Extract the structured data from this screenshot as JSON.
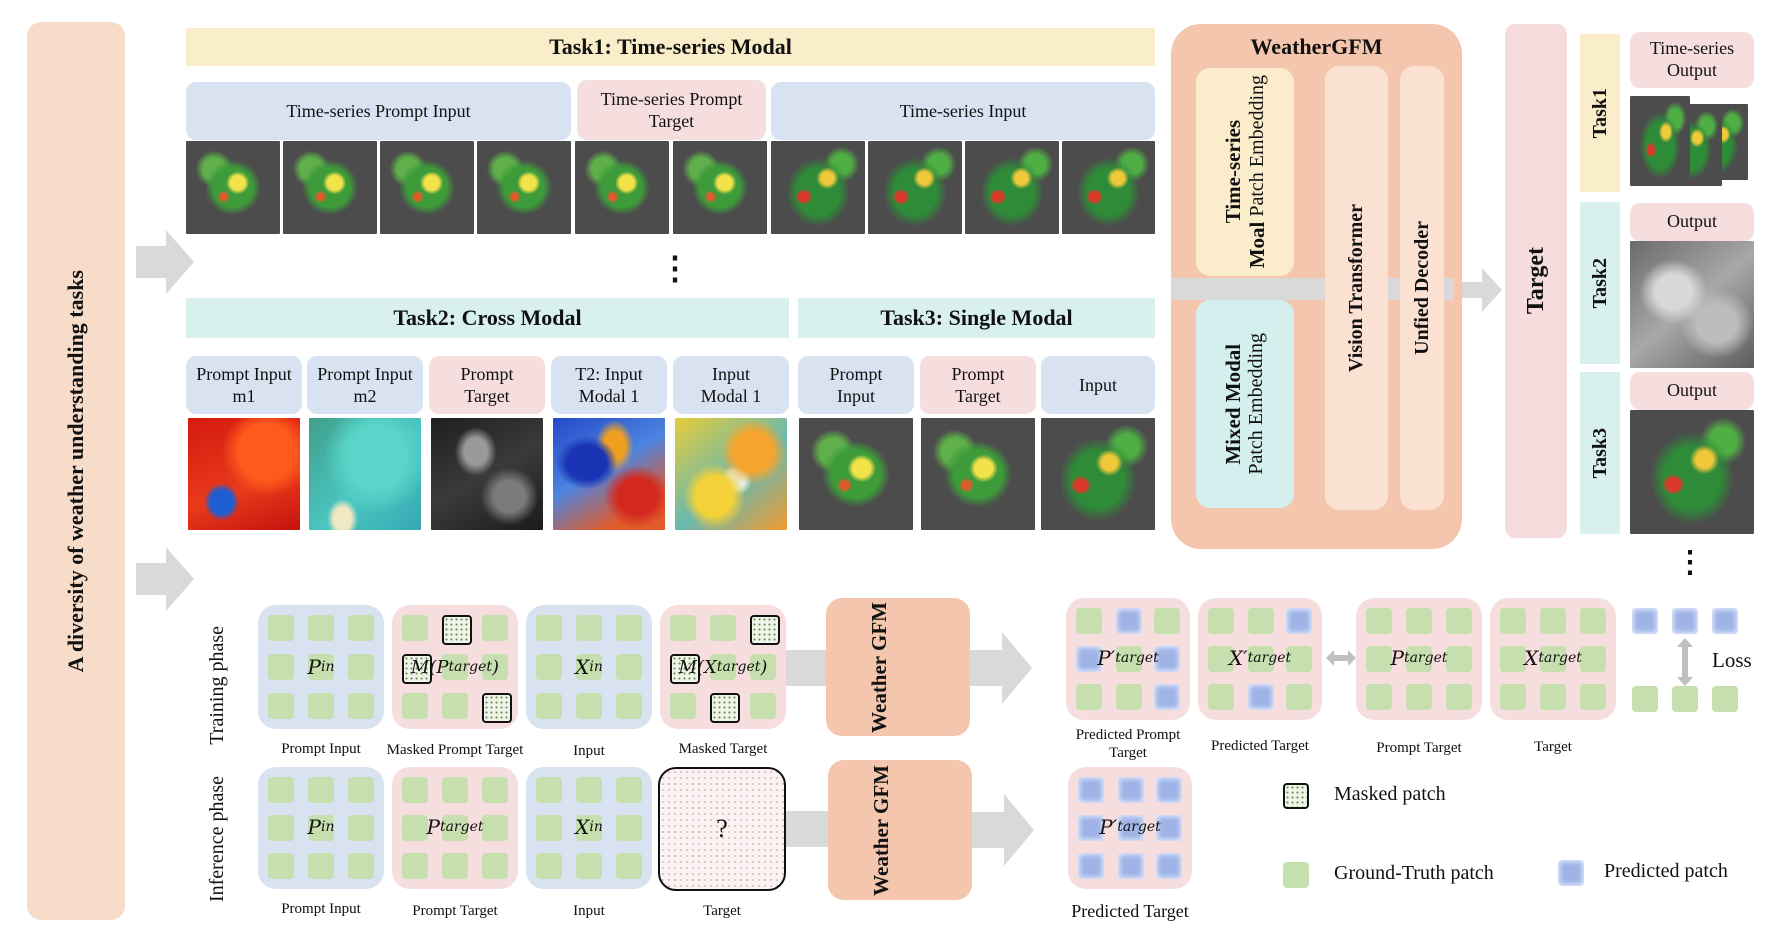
{
  "left_bar_label": "A diversity of weather understanding tasks",
  "task1": {
    "title": "Task1: Time-series Modal",
    "prompt_input": "Time-series Prompt Input",
    "prompt_target": "Time-series Prompt Target",
    "input": "Time-series Input"
  },
  "ellipsis": "⋮",
  "task2": {
    "title": "Task2: Cross Modal",
    "headers": [
      "Prompt Input m1",
      "Prompt Input m2",
      "Prompt Target",
      "T2: Input Modal 1",
      "Input Modal 1"
    ]
  },
  "task3": {
    "title": "Task3: Single Modal",
    "headers": [
      "Prompt Input",
      "Prompt Target",
      "Input"
    ]
  },
  "model": {
    "title": "WeatherGFM",
    "ts_embed_bold": "Time-series",
    "ts_embed_bold2": "Moal",
    "ts_embed_rest": "Patch Embedding",
    "mixed_bold": "Mixed Modal",
    "mixed_rest": "Patch Embedding",
    "vit": "Vision Transformer",
    "decoder": "Unfied Decoder"
  },
  "target_label": "Target",
  "outputs": {
    "task1": "Task1",
    "task2": "Task2",
    "task3": "Task3",
    "ts_output": "Time-series Output",
    "output2": "Output",
    "output3": "Output"
  },
  "training": {
    "phase": "Training phase",
    "boxes": {
      "p_in": "P",
      "p_in_sub": "in",
      "m_ptarget": "M(P",
      "m_ptarget_sub": "target",
      "m_ptarget_close": ")",
      "x_in": "X",
      "x_in_sub": "in",
      "m_xtarget": "M(X",
      "m_xtarget_sub": "target",
      "m_xtarget_close": ")"
    },
    "captions": [
      "Prompt Input",
      "Masked Prompt Target",
      "Input",
      "Masked Target"
    ],
    "model": "Weather GFM",
    "pred_prompt": "P′",
    "pred_prompt_sub": "target",
    "pred_target": "X′",
    "pred_target_sub": "target",
    "gt_prompt": "P",
    "gt_prompt_sub": "target",
    "gt_target": "X",
    "gt_target_sub": "target",
    "out_captions": [
      "Predicted Prompt Target",
      "Predicted Target",
      "Prompt Target",
      "Target"
    ],
    "loss": "Loss"
  },
  "inference": {
    "phase": "Inference phase",
    "captions": [
      "Prompt Input",
      "Prompt Target",
      "Input",
      "Target"
    ],
    "question": "?",
    "model": "Weather GFM",
    "pred": "P′",
    "pred_sub": "target",
    "pred_caption": "Predicted Target"
  },
  "legend": {
    "masked": "Masked patch",
    "gt": "Ground-Truth patch",
    "pred": "Predicted patch"
  }
}
